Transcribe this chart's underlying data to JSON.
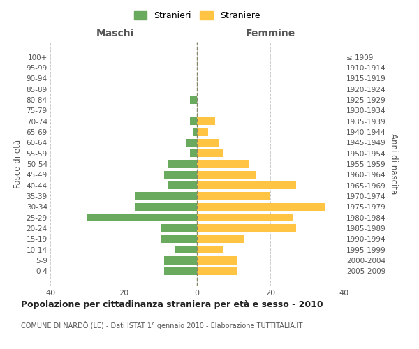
{
  "age_groups": [
    "0-4",
    "5-9",
    "10-14",
    "15-19",
    "20-24",
    "25-29",
    "30-34",
    "35-39",
    "40-44",
    "45-49",
    "50-54",
    "55-59",
    "60-64",
    "65-69",
    "70-74",
    "75-79",
    "80-84",
    "85-89",
    "90-94",
    "95-99",
    "100+"
  ],
  "birth_years": [
    "2005-2009",
    "2000-2004",
    "1995-1999",
    "1990-1994",
    "1985-1989",
    "1980-1984",
    "1975-1979",
    "1970-1974",
    "1965-1969",
    "1960-1964",
    "1955-1959",
    "1950-1954",
    "1945-1949",
    "1940-1944",
    "1935-1939",
    "1930-1934",
    "1925-1929",
    "1920-1924",
    "1915-1919",
    "1910-1914",
    "≤ 1909"
  ],
  "males": [
    9,
    9,
    6,
    10,
    10,
    30,
    17,
    17,
    8,
    9,
    8,
    2,
    3,
    1,
    2,
    0,
    2,
    0,
    0,
    0,
    0
  ],
  "females": [
    11,
    11,
    7,
    13,
    27,
    26,
    35,
    20,
    27,
    16,
    14,
    7,
    6,
    3,
    5,
    0,
    0,
    0,
    0,
    0,
    0
  ],
  "male_color": "#6aaa5e",
  "female_color": "#ffc444",
  "title": "Popolazione per cittadinanza straniera per età e sesso - 2010",
  "subtitle": "COMUNE DI NARDÒ (LE) - Dati ISTAT 1° gennaio 2010 - Elaborazione TUTTITALIA.IT",
  "ylabel_left": "Fasce di età",
  "ylabel_right": "Anni di nascita",
  "header_left": "Maschi",
  "header_right": "Femmine",
  "legend_stranieri": "Stranieri",
  "legend_straniere": "Straniere",
  "xlim": 40,
  "background_color": "#ffffff",
  "grid_color": "#cccccc",
  "spine_color": "#cccccc"
}
